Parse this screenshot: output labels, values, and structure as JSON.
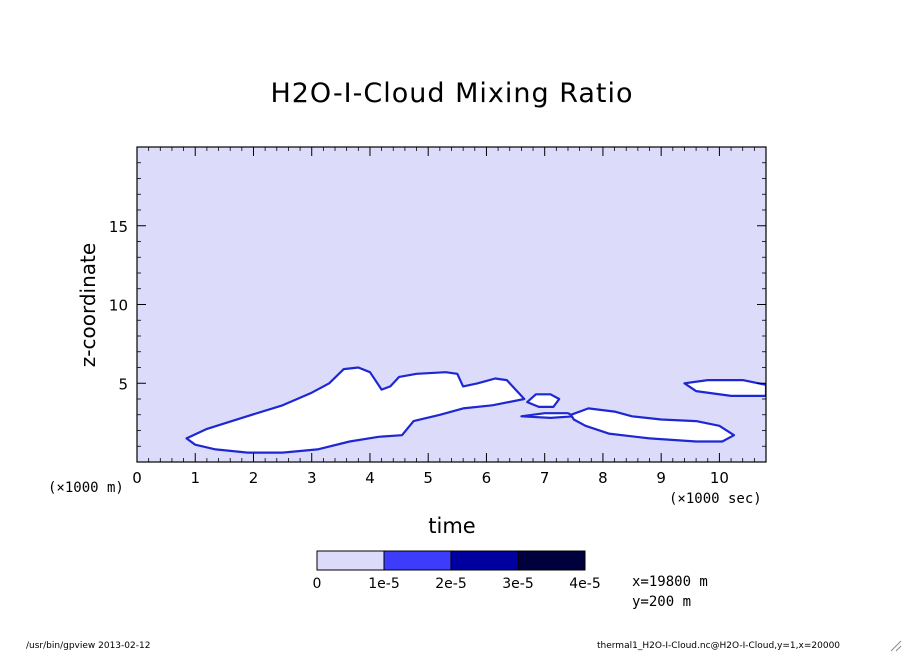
{
  "chart_data": {
    "type": "heatmap",
    "title": "H2O-I-Cloud Mixing Ratio",
    "xlabel": "time",
    "ylabel": "z-coordinate",
    "x_unit": "(×1000 sec)",
    "y_unit": "(×1000 m)",
    "xlim": [
      0,
      10.8
    ],
    "ylim": [
      0,
      20
    ],
    "x_ticks": [
      0,
      1,
      2,
      3,
      4,
      5,
      6,
      7,
      8,
      9,
      10
    ],
    "y_ticks": [
      5,
      10,
      15
    ],
    "grid": false,
    "background_level_color": "#dcdcfa",
    "levels": [
      {
        "label": "0",
        "color": "#dcdcfa"
      },
      {
        "label": "1e-5",
        "color": "#3c3cfa"
      },
      {
        "label": "2e-5",
        "color": "#0000a0"
      },
      {
        "label": "3e-5",
        "color": "#00003c"
      },
      {
        "label": "4e-5",
        "color": ""
      }
    ],
    "cloud_fill_color": "#ffffff",
    "cloud_edge_color": "#1e28d2",
    "clouds": [
      {
        "name": "main",
        "outline": [
          [
            0.85,
            1.5
          ],
          [
            1.2,
            2.1
          ],
          [
            1.8,
            2.8
          ],
          [
            2.5,
            3.6
          ],
          [
            3.0,
            4.4
          ],
          [
            3.3,
            5.0
          ],
          [
            3.55,
            5.9
          ],
          [
            3.8,
            6.0
          ],
          [
            4.0,
            5.7
          ],
          [
            4.2,
            4.6
          ],
          [
            4.35,
            4.8
          ],
          [
            4.5,
            5.4
          ],
          [
            4.8,
            5.6
          ],
          [
            5.3,
            5.7
          ],
          [
            5.5,
            5.6
          ],
          [
            5.6,
            4.8
          ],
          [
            5.85,
            5.0
          ],
          [
            6.15,
            5.3
          ],
          [
            6.35,
            5.2
          ],
          [
            6.5,
            4.6
          ],
          [
            6.65,
            4.0
          ],
          [
            6.1,
            3.6
          ],
          [
            5.6,
            3.4
          ],
          [
            5.2,
            3.0
          ],
          [
            4.75,
            2.6
          ],
          [
            4.55,
            1.7
          ],
          [
            4.15,
            1.6
          ],
          [
            3.65,
            1.3
          ],
          [
            3.1,
            0.8
          ],
          [
            2.5,
            0.6
          ],
          [
            1.9,
            0.6
          ],
          [
            1.35,
            0.8
          ],
          [
            1.0,
            1.1
          ],
          [
            0.85,
            1.5
          ]
        ]
      },
      {
        "name": "mid-small",
        "outline": [
          [
            6.7,
            3.8
          ],
          [
            6.85,
            4.3
          ],
          [
            7.1,
            4.3
          ],
          [
            7.25,
            4.0
          ],
          [
            7.15,
            3.5
          ],
          [
            6.9,
            3.5
          ],
          [
            6.7,
            3.8
          ]
        ]
      },
      {
        "name": "mid-strip",
        "outline": [
          [
            6.6,
            2.9
          ],
          [
            7.0,
            3.1
          ],
          [
            7.4,
            3.1
          ],
          [
            7.5,
            2.9
          ],
          [
            7.1,
            2.8
          ],
          [
            6.6,
            2.9
          ]
        ]
      },
      {
        "name": "right-low",
        "outline": [
          [
            7.45,
            3.0
          ],
          [
            7.75,
            3.4
          ],
          [
            8.2,
            3.2
          ],
          [
            8.5,
            2.9
          ],
          [
            9.0,
            2.7
          ],
          [
            9.6,
            2.6
          ],
          [
            10.0,
            2.3
          ],
          [
            10.25,
            1.7
          ],
          [
            10.05,
            1.3
          ],
          [
            9.6,
            1.3
          ],
          [
            8.8,
            1.5
          ],
          [
            8.1,
            1.8
          ],
          [
            7.7,
            2.3
          ],
          [
            7.5,
            2.7
          ],
          [
            7.45,
            3.0
          ]
        ]
      },
      {
        "name": "right-upper",
        "outline": [
          [
            9.4,
            5.0
          ],
          [
            9.8,
            5.2
          ],
          [
            10.4,
            5.2
          ],
          [
            10.8,
            4.9
          ],
          [
            10.8,
            4.2
          ],
          [
            10.2,
            4.2
          ],
          [
            9.6,
            4.5
          ],
          [
            9.4,
            5.0
          ]
        ]
      }
    ]
  },
  "info": {
    "x_pos": "x=19800 m",
    "y_pos": "y=200 m"
  },
  "footer": {
    "left": "/usr/bin/gpview  2013-02-12",
    "right": "thermal1_H2O-I-Cloud.nc@H2O-I-Cloud,y=1,x=20000"
  }
}
